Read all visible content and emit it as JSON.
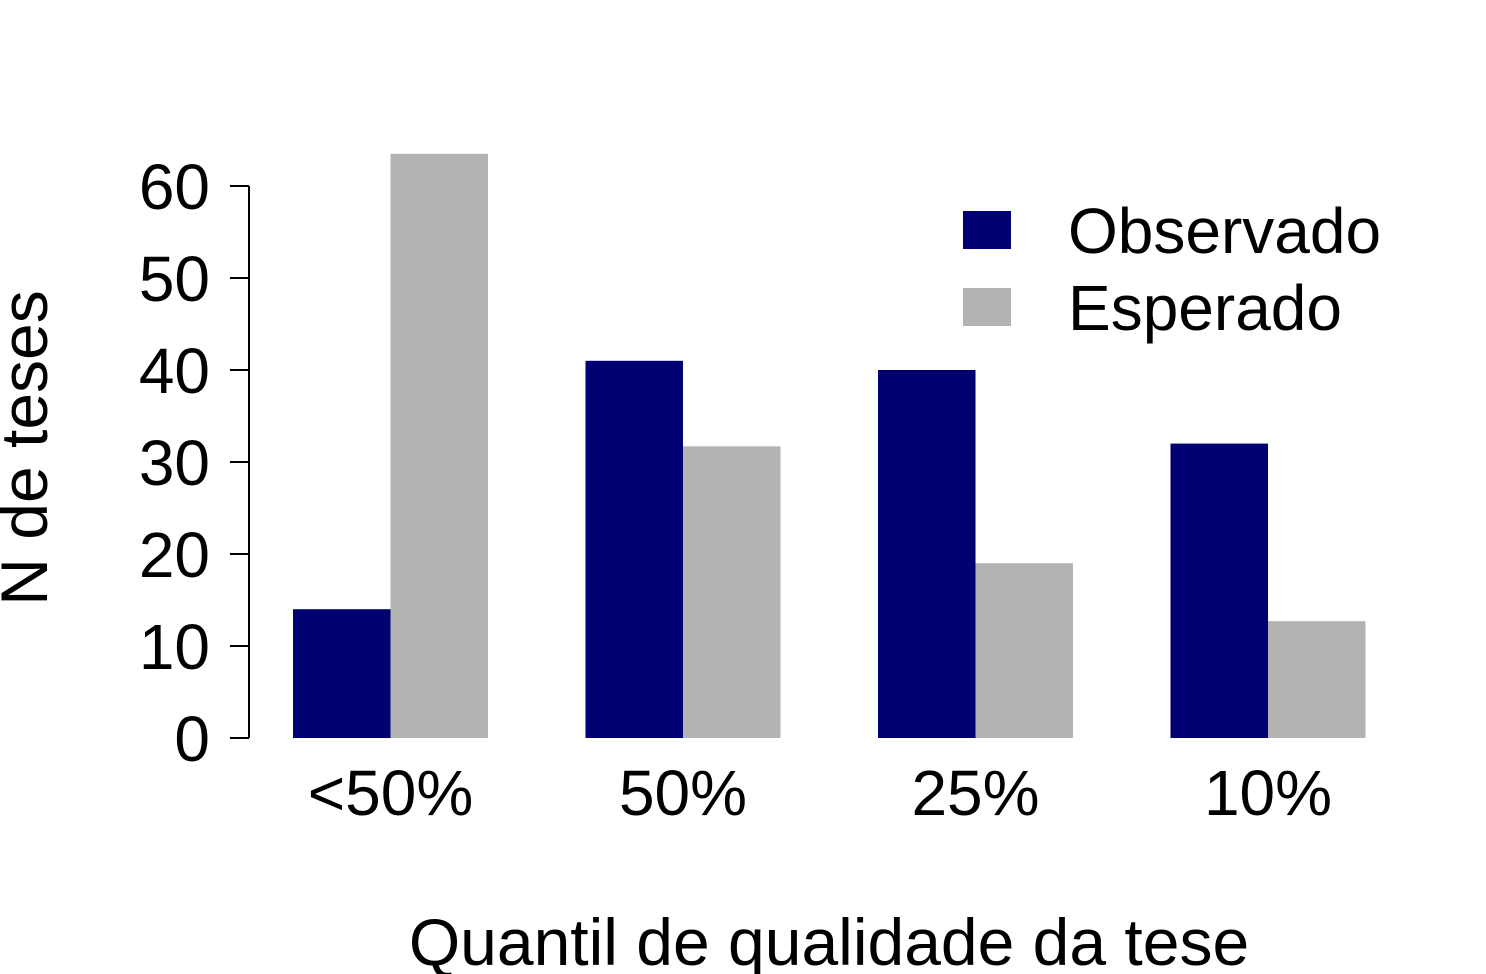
{
  "chart_data": {
    "type": "bar",
    "title": "",
    "xlabel": "Quantil de qualidade da tese",
    "ylabel": "N de teses",
    "categories": [
      "<50%",
      "50%",
      "25%",
      "10%"
    ],
    "series": [
      {
        "name": "Observado",
        "color": "#000073",
        "values": [
          14,
          41,
          40,
          32
        ]
      },
      {
        "name": "Esperado",
        "color": "#b3b3b3",
        "values": [
          63.5,
          31.7,
          19,
          12.7
        ]
      }
    ],
    "ylim": [
      0,
      60
    ],
    "yticks": [
      "0",
      "10",
      "20",
      "30",
      "40",
      "50",
      "60"
    ],
    "grid": false,
    "legend": "top-right"
  }
}
